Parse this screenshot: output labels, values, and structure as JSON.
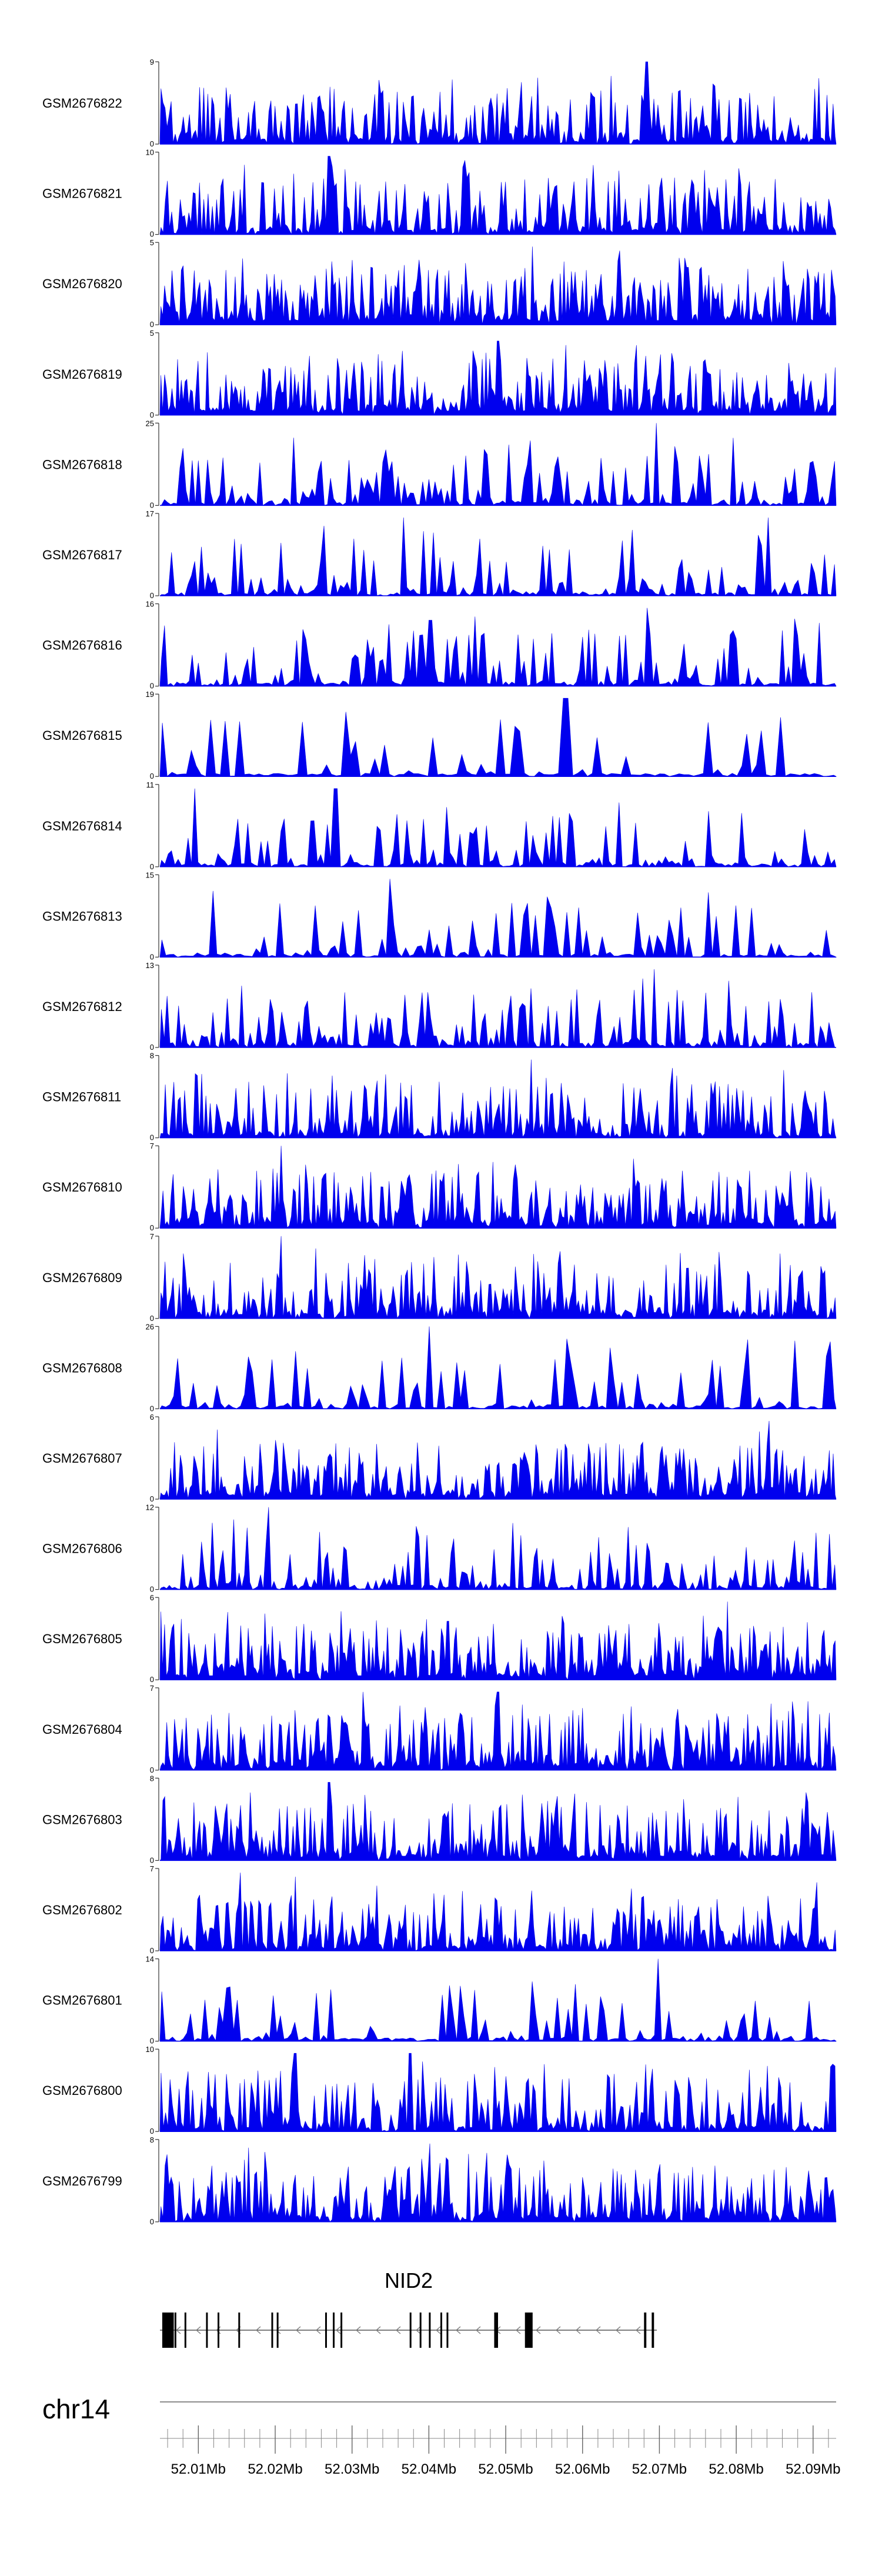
{
  "chart_data": {
    "type": "area",
    "chromosome": "chr14",
    "gene": "NID2",
    "xrange": [
      52005000,
      52093000
    ],
    "ticks": [
      52010000,
      52020000,
      52030000,
      52040000,
      52050000,
      52060000,
      52070000,
      52080000,
      52090000
    ],
    "tick_labels": [
      "52.01Mb",
      "52.02Mb",
      "52.03Mb",
      "52.04Mb",
      "52.05Mb",
      "52.06Mb",
      "52.07Mb",
      "52.08Mb",
      "52.09Mb"
    ],
    "track_color": "#0000ee",
    "tracks": [
      {
        "name": "GSM2676822",
        "ymax": "9",
        "ymin": "0",
        "density": 0.85,
        "spikes": [
          [
            0.72,
            1.0
          ]
        ]
      },
      {
        "name": "GSM2676821",
        "ymax": "10",
        "ymin": "0",
        "density": 0.8,
        "spikes": [
          [
            0.25,
            0.95
          ],
          [
            0.45,
            0.9
          ]
        ]
      },
      {
        "name": "GSM2676820",
        "ymax": "5",
        "ymin": "0",
        "density": 0.95,
        "spikes": [
          [
            0.55,
            0.95
          ],
          [
            0.68,
            0.9
          ]
        ]
      },
      {
        "name": "GSM2676819",
        "ymax": "5",
        "ymin": "0",
        "density": 0.95,
        "spikes": [
          [
            0.5,
            0.9
          ],
          [
            0.6,
            0.85
          ]
        ]
      },
      {
        "name": "GSM2676818",
        "ymax": "25",
        "ymin": "0",
        "density": 0.5,
        "spikes": [
          [
            0.735,
            1.0
          ],
          [
            0.72,
            0.6
          ]
        ]
      },
      {
        "name": "GSM2676817",
        "ymax": "17",
        "ymin": "0",
        "density": 0.45,
        "spikes": [
          [
            0.36,
            0.95
          ],
          [
            0.9,
            0.95
          ],
          [
            0.7,
            0.8
          ]
        ]
      },
      {
        "name": "GSM2676816",
        "ymax": "16",
        "ymin": "0",
        "density": 0.5,
        "spikes": [
          [
            0.72,
            0.95
          ],
          [
            0.4,
            0.8
          ],
          [
            0.34,
            0.75
          ]
        ]
      },
      {
        "name": "GSM2676815",
        "ymax": "19",
        "ymin": "0",
        "density": 0.25,
        "spikes": [
          [
            0.6,
            0.95
          ],
          [
            0.53,
            0.55
          ]
        ]
      },
      {
        "name": "GSM2676814",
        "ymax": "11",
        "ymin": "0",
        "density": 0.45,
        "spikes": [
          [
            0.05,
            0.95
          ],
          [
            0.26,
            0.95
          ]
        ]
      },
      {
        "name": "GSM2676813",
        "ymax": "15",
        "ymin": "0",
        "density": 0.35,
        "spikes": [
          [
            0.34,
            0.95
          ],
          [
            0.58,
            0.6
          ]
        ]
      },
      {
        "name": "GSM2676812",
        "ymax": "13",
        "ymin": "0",
        "density": 0.55,
        "spikes": [
          [
            0.73,
            0.95
          ],
          [
            0.12,
            0.75
          ]
        ]
      },
      {
        "name": "GSM2676811",
        "ymax": "8",
        "ymin": "0",
        "density": 0.8,
        "spikes": [
          [
            0.55,
            0.95
          ]
        ]
      },
      {
        "name": "GSM2676810",
        "ymax": "7",
        "ymin": "0",
        "density": 0.85,
        "spikes": [
          [
            0.18,
            1.0
          ]
        ]
      },
      {
        "name": "GSM2676809",
        "ymax": "7",
        "ymin": "0",
        "density": 0.85,
        "spikes": [
          [
            0.18,
            1.0
          ],
          [
            0.23,
            0.85
          ]
        ]
      },
      {
        "name": "GSM2676808",
        "ymax": "26",
        "ymin": "0",
        "density": 0.35,
        "spikes": [
          [
            0.4,
            1.0
          ],
          [
            0.6,
            0.85
          ]
        ]
      },
      {
        "name": "GSM2676807",
        "ymax": "6",
        "ymin": "0",
        "density": 0.9,
        "spikes": [
          [
            0.9,
            0.95
          ]
        ]
      },
      {
        "name": "GSM2676806",
        "ymax": "12",
        "ymin": "0",
        "density": 0.6,
        "spikes": [
          [
            0.16,
            1.0
          ],
          [
            0.11,
            0.85
          ],
          [
            0.13,
            0.75
          ]
        ]
      },
      {
        "name": "GSM2676805",
        "ymax": "6",
        "ymin": "0",
        "density": 0.95,
        "spikes": [
          [
            0.84,
            0.95
          ]
        ]
      },
      {
        "name": "GSM2676804",
        "ymax": "7",
        "ymin": "0",
        "density": 0.9,
        "spikes": [
          [
            0.3,
            0.95
          ],
          [
            0.5,
            0.95
          ]
        ]
      },
      {
        "name": "GSM2676803",
        "ymax": "8",
        "ymin": "0",
        "density": 0.9,
        "spikes": [
          [
            0.25,
            0.95
          ]
        ]
      },
      {
        "name": "GSM2676802",
        "ymax": "7",
        "ymin": "0",
        "density": 0.85,
        "spikes": [
          [
            0.12,
            0.95
          ],
          [
            0.2,
            0.9
          ]
        ]
      },
      {
        "name": "GSM2676801",
        "ymax": "14",
        "ymin": "0",
        "density": 0.4,
        "spikes": [
          [
            0.735,
            1.0
          ]
        ]
      },
      {
        "name": "GSM2676800",
        "ymax": "10",
        "ymin": "0",
        "density": 0.75,
        "spikes": [
          [
            0.2,
            0.95
          ],
          [
            0.37,
            0.95
          ]
        ]
      },
      {
        "name": "GSM2676799",
        "ymax": "8",
        "ymin": "0",
        "density": 0.85,
        "spikes": [
          [
            0.4,
            0.95
          ],
          [
            0.13,
            0.9
          ]
        ]
      }
    ],
    "exons": [
      [
        52005300,
        52006800
      ],
      [
        52006900,
        52007000
      ],
      [
        52008200,
        52008400
      ],
      [
        52011000,
        52011200
      ],
      [
        52012500,
        52012700
      ],
      [
        52015200,
        52015400
      ],
      [
        52019500,
        52019700
      ],
      [
        52020200,
        52020400
      ],
      [
        52026500,
        52026700
      ],
      [
        52027500,
        52027700
      ],
      [
        52028500,
        52028700
      ],
      [
        52037500,
        52037700
      ],
      [
        52038800,
        52039000
      ],
      [
        52040000,
        52040200
      ],
      [
        52041500,
        52041700
      ],
      [
        52042300,
        52042500
      ],
      [
        52048500,
        52049000
      ],
      [
        52052500,
        52053500
      ],
      [
        52068000,
        52068300
      ],
      [
        52069000,
        52069300
      ]
    ]
  }
}
